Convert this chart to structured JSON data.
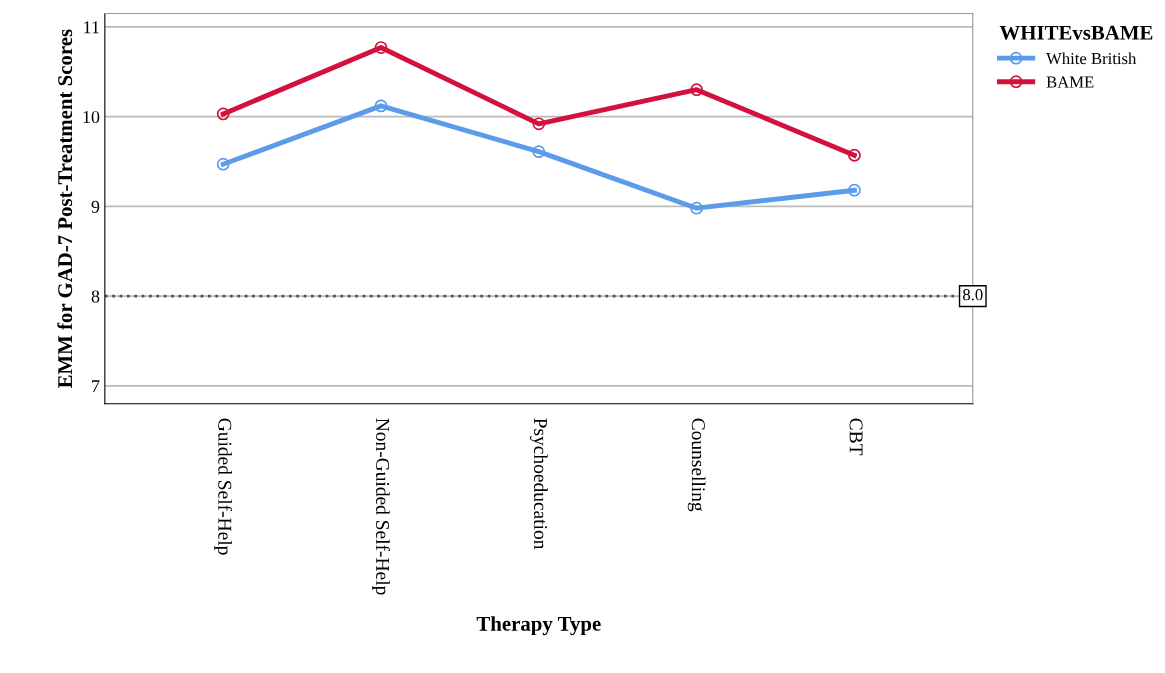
{
  "chart_data": {
    "type": "line",
    "xlabel": "Therapy Type",
    "ylabel": "EMM for GAD-7 Post-Treatment Scores",
    "legend_title": "WHITEvsBAME",
    "categories": [
      "Guided Self-Help",
      "Non-Guided Self-Help",
      "Psychoeducation",
      "Counselling",
      "CBT"
    ],
    "series": [
      {
        "name": "White British",
        "color": "#5b9bea",
        "values": [
          9.47,
          10.12,
          9.61,
          8.98,
          9.18
        ]
      },
      {
        "name": "BAME",
        "color": "#d2113c",
        "values": [
          10.03,
          10.77,
          9.92,
          10.3,
          9.57
        ]
      }
    ],
    "ylim": [
      6.8,
      11.15
    ],
    "yticks": [
      7,
      8,
      9,
      10,
      11
    ],
    "grid": "y",
    "legend": "top right",
    "marker": "circle",
    "line_style": "solid",
    "ref_lines": [
      {
        "axis": "y",
        "value": 8,
        "label": "8.0",
        "line_style": "dotted",
        "color": "#555555"
      }
    ]
  }
}
